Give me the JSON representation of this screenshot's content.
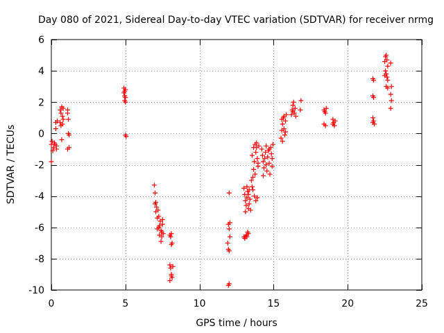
{
  "colors": {
    "marker": "#ff0000",
    "axis": "#000000",
    "grid": "#a0a0a0",
    "background": "#ffffff"
  },
  "chart_data": {
    "type": "scatter",
    "marker": "plus",
    "title": "Day 080 of 2021, Sidereal Day-to-day VTEC variation (SDTVAR) for receiver nrmg",
    "xlabel": "GPS time / hours",
    "ylabel": "SDTVAR / TECUs",
    "xlim": [
      0,
      25
    ],
    "ylim": [
      -10,
      6
    ],
    "xticks": [
      0,
      5,
      10,
      15,
      20,
      25
    ],
    "yticks": [
      6,
      4,
      2,
      0,
      -2,
      -4,
      -6,
      -8,
      -10
    ],
    "xtick_labels": [
      "0",
      "5",
      "10",
      "15",
      "20",
      "25"
    ],
    "ytick_labels": [
      "6",
      "4",
      "2",
      "0",
      "-2",
      "-4",
      "-6",
      "-8",
      "-10"
    ],
    "grid": true,
    "series": [
      {
        "name": "SDTVAR",
        "points": [
          [
            0.0,
            -0.7
          ],
          [
            0.0,
            -1.8
          ],
          [
            0.05,
            -0.5
          ],
          [
            0.1,
            -1.1
          ],
          [
            0.15,
            -0.9
          ],
          [
            0.2,
            -0.6
          ],
          [
            0.25,
            -0.7
          ],
          [
            0.3,
            0.7
          ],
          [
            0.3,
            0.3
          ],
          [
            0.35,
            -0.8
          ],
          [
            0.35,
            -1.0
          ],
          [
            0.4,
            0.8
          ],
          [
            0.6,
            1.5
          ],
          [
            0.6,
            0.7
          ],
          [
            0.65,
            0.5
          ],
          [
            0.65,
            1.3
          ],
          [
            0.7,
            1.7
          ],
          [
            0.7,
            -0.4
          ],
          [
            0.75,
            1.1
          ],
          [
            0.75,
            0.6
          ],
          [
            0.8,
            1.6
          ],
          [
            0.8,
            0.9
          ],
          [
            1.1,
            1.5
          ],
          [
            1.1,
            1.3
          ],
          [
            1.15,
            0.9
          ],
          [
            1.15,
            0.0
          ],
          [
            1.2,
            -0.1
          ],
          [
            1.2,
            -0.9
          ],
          [
            1.1,
            -1.0
          ],
          [
            4.9,
            2.9
          ],
          [
            4.9,
            2.6
          ],
          [
            4.95,
            2.4
          ],
          [
            4.95,
            2.1
          ],
          [
            5.0,
            2.8
          ],
          [
            5.0,
            2.3
          ],
          [
            5.0,
            -0.1
          ],
          [
            5.05,
            -0.2
          ],
          [
            5.0,
            2.0
          ],
          [
            4.95,
            2.7
          ],
          [
            6.95,
            -3.3
          ],
          [
            7.0,
            -3.8
          ],
          [
            7.0,
            -4.5
          ],
          [
            7.05,
            -5.0
          ],
          [
            7.1,
            -4.7
          ],
          [
            7.15,
            -5.4
          ],
          [
            7.2,
            -4.9
          ],
          [
            7.25,
            -5.3
          ],
          [
            7.3,
            -5.9
          ],
          [
            7.35,
            -5.6
          ],
          [
            7.4,
            -6.2
          ],
          [
            7.45,
            -6.6
          ],
          [
            7.5,
            -5.8
          ],
          [
            7.55,
            -6.4
          ],
          [
            7.25,
            -6.0
          ],
          [
            7.3,
            -6.5
          ],
          [
            7.4,
            -6.9
          ],
          [
            7.45,
            -6.3
          ],
          [
            7.5,
            -5.5
          ],
          [
            7.15,
            -6.1
          ],
          [
            7.05,
            -4.4
          ],
          [
            8.0,
            -6.5
          ],
          [
            8.05,
            -6.6
          ],
          [
            8.1,
            -7.1
          ],
          [
            8.1,
            -6.4
          ],
          [
            8.15,
            -7.0
          ],
          [
            8.0,
            -8.4
          ],
          [
            8.05,
            -8.6
          ],
          [
            8.1,
            -9.1
          ],
          [
            8.15,
            -9.2
          ],
          [
            8.2,
            -8.5
          ],
          [
            8.0,
            -9.4
          ],
          [
            8.1,
            -9.0
          ],
          [
            12.0,
            -3.8
          ],
          [
            11.95,
            -5.8
          ],
          [
            12.0,
            -6.1
          ],
          [
            12.05,
            -6.6
          ],
          [
            11.9,
            -7.0
          ],
          [
            11.95,
            -7.4
          ],
          [
            12.0,
            -7.5
          ],
          [
            12.05,
            -5.7
          ],
          [
            12.0,
            -9.6
          ],
          [
            11.95,
            -9.7
          ],
          [
            13.0,
            -6.6
          ],
          [
            13.05,
            -6.7
          ],
          [
            13.1,
            -6.6
          ],
          [
            13.15,
            -6.5
          ],
          [
            13.2,
            -6.6
          ],
          [
            13.25,
            -6.3
          ],
          [
            13.3,
            -6.4
          ],
          [
            13.0,
            -3.5
          ],
          [
            13.05,
            -3.9
          ],
          [
            13.1,
            -4.3
          ],
          [
            13.15,
            -4.6
          ],
          [
            13.2,
            -4.1
          ],
          [
            13.25,
            -3.7
          ],
          [
            13.3,
            -4.8
          ],
          [
            13.35,
            -3.6
          ],
          [
            13.4,
            -4.2
          ],
          [
            13.45,
            -4.9
          ],
          [
            13.1,
            -5.0
          ],
          [
            13.2,
            -3.4
          ],
          [
            13.3,
            -3.9
          ],
          [
            13.35,
            -4.5
          ],
          [
            13.5,
            -3.0
          ],
          [
            13.55,
            -3.4
          ],
          [
            13.6,
            -2.8
          ],
          [
            13.65,
            -2.3
          ],
          [
            13.7,
            -1.8
          ],
          [
            13.75,
            -2.6
          ],
          [
            13.8,
            -1.2
          ],
          [
            13.85,
            -0.9
          ],
          [
            13.9,
            -1.6
          ],
          [
            13.95,
            -2.1
          ],
          [
            14.0,
            -0.8
          ],
          [
            13.6,
            -3.6
          ],
          [
            13.7,
            -4.0
          ],
          [
            13.8,
            -4.3
          ],
          [
            13.9,
            -4.1
          ],
          [
            13.55,
            -1.4
          ],
          [
            13.65,
            -0.9
          ],
          [
            13.75,
            -0.7
          ],
          [
            13.85,
            -0.6
          ],
          [
            13.95,
            -1.9
          ],
          [
            14.2,
            -1.0
          ],
          [
            14.25,
            -1.4
          ],
          [
            14.3,
            -1.8
          ],
          [
            14.35,
            -2.2
          ],
          [
            14.4,
            -1.6
          ],
          [
            14.45,
            -1.2
          ],
          [
            14.5,
            -2.0
          ],
          [
            14.55,
            -2.4
          ],
          [
            14.6,
            -1.5
          ],
          [
            14.65,
            -1.1
          ],
          [
            14.7,
            -1.9
          ],
          [
            14.75,
            -2.6
          ],
          [
            14.8,
            -0.9
          ],
          [
            14.85,
            -1.3
          ],
          [
            14.9,
            -2.1
          ],
          [
            14.95,
            -0.7
          ],
          [
            14.3,
            -2.7
          ],
          [
            14.5,
            -0.8
          ],
          [
            14.7,
            -1.0
          ],
          [
            14.9,
            -1.6
          ],
          [
            15.5,
            -0.3
          ],
          [
            15.55,
            0.2
          ],
          [
            15.6,
            0.6
          ],
          [
            15.65,
            1.0
          ],
          [
            15.7,
            0.3
          ],
          [
            15.75,
            -0.1
          ],
          [
            15.8,
            0.8
          ],
          [
            15.85,
            1.2
          ],
          [
            15.6,
            -0.5
          ],
          [
            15.7,
            1.1
          ],
          [
            15.8,
            0.1
          ],
          [
            15.55,
            0.9
          ],
          [
            16.2,
            1.2
          ],
          [
            16.25,
            1.5
          ],
          [
            16.3,
            1.8
          ],
          [
            16.35,
            2.0
          ],
          [
            16.4,
            1.3
          ],
          [
            16.45,
            1.6
          ],
          [
            16.5,
            1.1
          ],
          [
            16.3,
            1.4
          ],
          [
            16.85,
            2.1
          ],
          [
            16.8,
            1.5
          ],
          [
            18.4,
            1.5
          ],
          [
            18.45,
            1.4
          ],
          [
            18.5,
            1.3
          ],
          [
            18.55,
            1.6
          ],
          [
            18.4,
            0.6
          ],
          [
            18.5,
            0.5
          ],
          [
            19.0,
            0.9
          ],
          [
            19.05,
            0.7
          ],
          [
            19.1,
            0.5
          ],
          [
            19.15,
            0.8
          ],
          [
            19.0,
            0.6
          ],
          [
            21.7,
            3.5
          ],
          [
            21.75,
            3.4
          ],
          [
            21.7,
            2.4
          ],
          [
            21.75,
            2.3
          ],
          [
            21.7,
            1.0
          ],
          [
            21.75,
            0.8
          ],
          [
            21.8,
            0.6
          ],
          [
            21.7,
            0.7
          ],
          [
            22.5,
            4.6
          ],
          [
            22.55,
            4.9
          ],
          [
            22.6,
            5.0
          ],
          [
            22.65,
            4.7
          ],
          [
            22.7,
            4.3
          ],
          [
            22.55,
            4.0
          ],
          [
            22.6,
            3.8
          ],
          [
            22.65,
            3.6
          ],
          [
            22.7,
            3.4
          ],
          [
            22.6,
            3.0
          ],
          [
            22.7,
            2.9
          ],
          [
            22.9,
            4.5
          ],
          [
            22.95,
            3.0
          ],
          [
            22.9,
            2.5
          ],
          [
            22.95,
            2.1
          ],
          [
            22.9,
            1.6
          ],
          [
            22.5,
            3.7
          ]
        ]
      }
    ]
  }
}
